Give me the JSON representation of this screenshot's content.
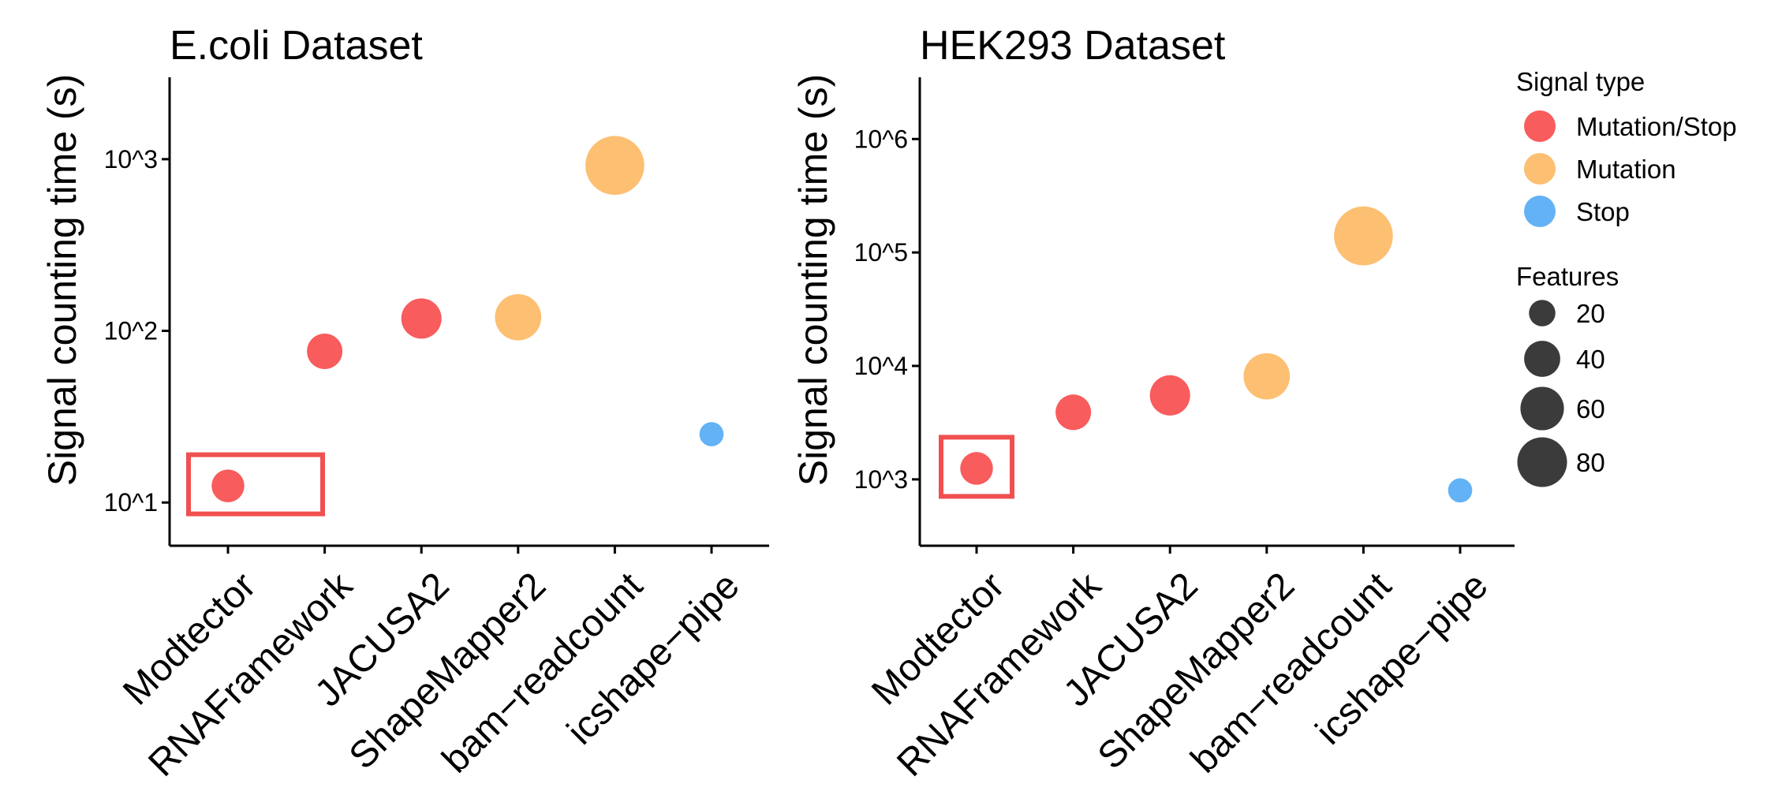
{
  "chart_data": [
    {
      "type": "scatter",
      "title": "E.coli Dataset",
      "xlabel": "",
      "ylabel": "Signal counting time (s)",
      "y_scale": "log10",
      "ylim": [
        5.6,
        3000
      ],
      "y_ticks": [
        10,
        100,
        1000
      ],
      "y_tick_labels": [
        "10^1",
        "10^2",
        "10^3"
      ],
      "categories": [
        "Modtector",
        "RNAFramework",
        "JACUSA2",
        "ShapeMapper2",
        "bam−readcount",
        "icshape−pipe"
      ],
      "points": [
        {
          "x": "Modtector",
          "y": 12.5,
          "signal_type": "Mutation/Stop",
          "features": 20
        },
        {
          "x": "RNAFramework",
          "y": 76,
          "signal_type": "Mutation/Stop",
          "features": 25
        },
        {
          "x": "JACUSA2",
          "y": 118,
          "signal_type": "Mutation/Stop",
          "features": 35
        },
        {
          "x": "ShapeMapper2",
          "y": 120,
          "signal_type": "Mutation",
          "features": 50
        },
        {
          "x": "bam−readcount",
          "y": 920,
          "signal_type": "Mutation",
          "features": 90
        },
        {
          "x": "icshape−pipe",
          "y": 25,
          "signal_type": "Stop",
          "features": 8
        }
      ],
      "highlight": {
        "x": "Modtector",
        "color": "#f05050"
      }
    },
    {
      "type": "scatter",
      "title": "HEK293 Dataset",
      "xlabel": "",
      "ylabel": "Signal counting time (s)",
      "y_scale": "log10",
      "ylim": [
        260,
        3500000
      ],
      "y_ticks": [
        1000,
        10000,
        100000,
        1000000
      ],
      "y_tick_labels": [
        "10^3",
        "10^4",
        "10^5",
        "10^6"
      ],
      "categories": [
        "Modtector",
        "RNAFramework",
        "JACUSA2",
        "ShapeMapper2",
        "bam−readcount",
        "icshape−pipe"
      ],
      "points": [
        {
          "x": "Modtector",
          "y": 1250,
          "signal_type": "Mutation/Stop",
          "features": 20
        },
        {
          "x": "RNAFramework",
          "y": 3900,
          "signal_type": "Mutation/Stop",
          "features": 25
        },
        {
          "x": "JACUSA2",
          "y": 5500,
          "signal_type": "Mutation/Stop",
          "features": 35
        },
        {
          "x": "ShapeMapper2",
          "y": 8100,
          "signal_type": "Mutation",
          "features": 50
        },
        {
          "x": "bam−readcount",
          "y": 140000,
          "signal_type": "Mutation",
          "features": 90
        },
        {
          "x": "icshape−pipe",
          "y": 800,
          "signal_type": "Stop",
          "features": 8
        }
      ],
      "highlight": {
        "x": "Modtector",
        "color": "#f05050"
      }
    }
  ],
  "legend": {
    "color_title": "Signal type",
    "color_entries": [
      {
        "label": "Mutation/Stop",
        "color": "#f85c5c"
      },
      {
        "label": "Mutation",
        "color": "#fdbf71"
      },
      {
        "label": "Stop",
        "color": "#63b2f5"
      }
    ],
    "size_title": "Features",
    "size_entries": [
      {
        "label": "20",
        "value": 20
      },
      {
        "label": "40",
        "value": 40
      },
      {
        "label": "60",
        "value": 60
      },
      {
        "label": "80",
        "value": 80
      }
    ],
    "size_color": "#3b3b3b",
    "placement": "right"
  }
}
